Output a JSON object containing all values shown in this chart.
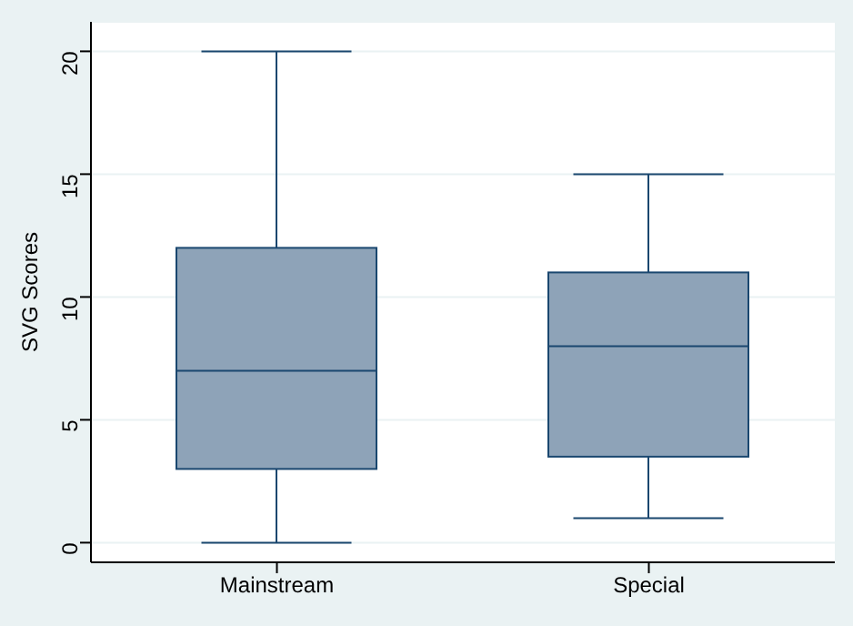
{
  "chart_data": {
    "type": "box",
    "ylabel": "SVG Scores",
    "categories": [
      "Mainstream",
      "Special"
    ],
    "boxes": [
      {
        "low": 0,
        "q1": 3,
        "median": 7,
        "q3": 12,
        "high": 20
      },
      {
        "low": 1,
        "q1": 3.5,
        "median": 8,
        "q3": 11,
        "high": 15
      }
    ],
    "color": "#8ea3b8",
    "ylim": [
      -0.8,
      21.2
    ],
    "yticks": [
      0,
      5,
      10,
      15,
      20
    ],
    "grid": "y"
  }
}
